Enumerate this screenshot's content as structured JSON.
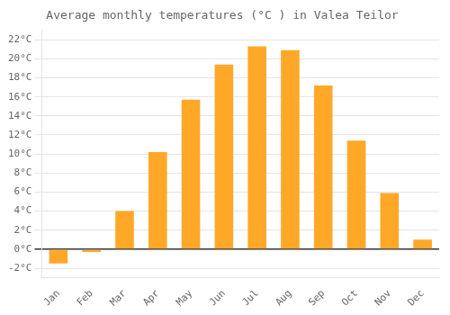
{
  "chart_data": {
    "type": "bar",
    "title": "Average monthly temperatures (°C ) in Valea Teilor",
    "categories": [
      "Jan",
      "Feb",
      "Mar",
      "Apr",
      "May",
      "Jun",
      "Jul",
      "Aug",
      "Sep",
      "Oct",
      "Nov",
      "Dec"
    ],
    "values": [
      -1.5,
      -0.3,
      4.0,
      10.2,
      15.7,
      19.4,
      21.3,
      20.9,
      17.2,
      11.4,
      5.9,
      1.0
    ],
    "color": "#FFA828",
    "ylim": [
      -3,
      23
    ],
    "yticks": [
      {
        "value": -2,
        "label": "-2°C"
      },
      {
        "value": 0,
        "label": "0°C"
      },
      {
        "value": 2,
        "label": "2°C"
      },
      {
        "value": 4,
        "label": "4°C"
      },
      {
        "value": 6,
        "label": "6°C"
      },
      {
        "value": 8,
        "label": "8°C"
      },
      {
        "value": 10,
        "label": "10°C"
      },
      {
        "value": 12,
        "label": "12°C"
      },
      {
        "value": 14,
        "label": "14°C"
      },
      {
        "value": 16,
        "label": "16°C"
      },
      {
        "value": 18,
        "label": "18°C"
      },
      {
        "value": 20,
        "label": "20°C"
      },
      {
        "value": 22,
        "label": "22°C"
      }
    ],
    "grid": true
  }
}
